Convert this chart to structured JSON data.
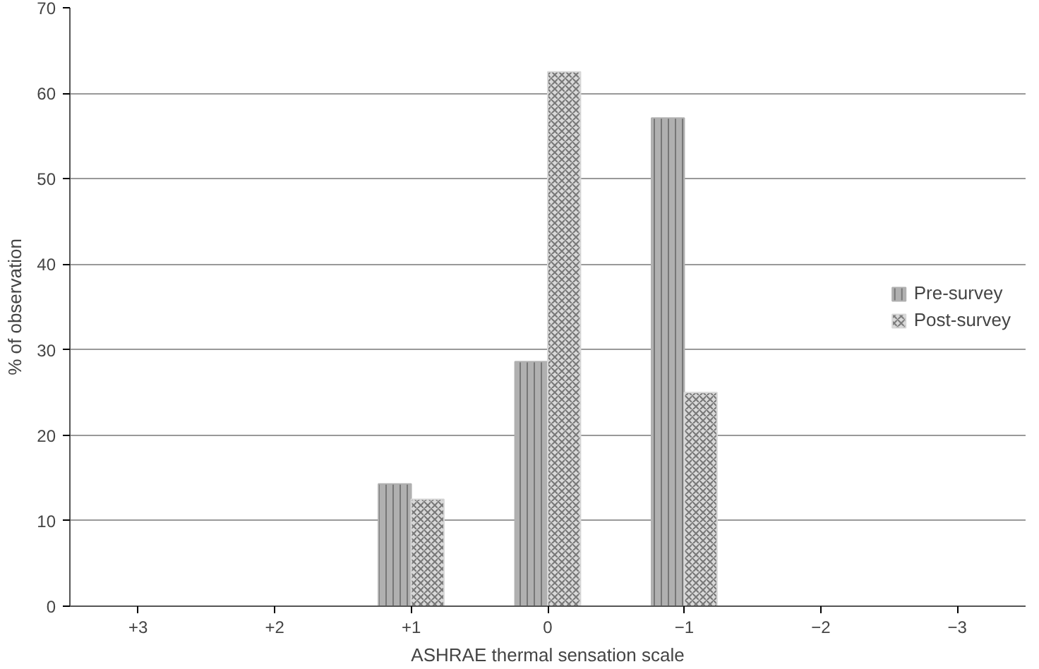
{
  "chart_data": {
    "type": "bar",
    "xlabel": "ASHRAE thermal sensation scale",
    "ylabel": "% of observation",
    "categories": [
      "+3",
      "+2",
      "+1",
      "0",
      "−1",
      "−2",
      "−3"
    ],
    "series": [
      {
        "name": "Pre-survey",
        "color": "#b0b0b0",
        "values": [
          0,
          0,
          14.3,
          28.6,
          57.1,
          0,
          0
        ]
      },
      {
        "name": "Post-survey",
        "color": "#d8d8d8",
        "values": [
          0,
          0,
          12.5,
          62.5,
          25,
          0,
          0
        ]
      }
    ],
    "ylim": [
      0,
      70
    ],
    "yticks": [
      0,
      10,
      20,
      30,
      40,
      50,
      60,
      70
    ],
    "grid": "y",
    "legend": "right"
  }
}
